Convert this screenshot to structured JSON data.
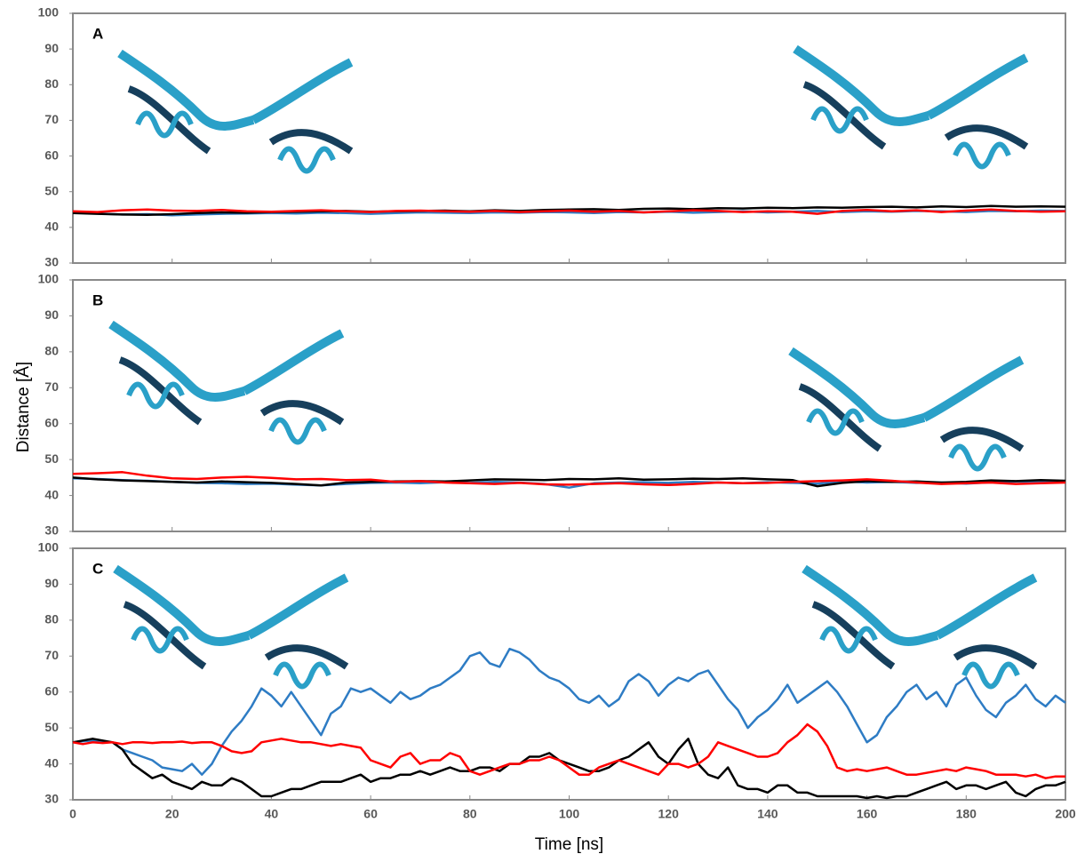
{
  "chart_data": [
    {
      "type": "line",
      "label": "A",
      "xlim": [
        0,
        200
      ],
      "ylim": [
        30,
        100
      ],
      "xticks": [
        0,
        20,
        40,
        60,
        80,
        100,
        120,
        140,
        160,
        180,
        200
      ],
      "yticks": [
        30,
        40,
        50,
        60,
        70,
        80,
        90,
        100
      ],
      "show_xtick_labels": false,
      "x": [
        0,
        5,
        10,
        15,
        20,
        25,
        30,
        35,
        40,
        45,
        50,
        55,
        60,
        65,
        70,
        75,
        80,
        85,
        90,
        95,
        100,
        105,
        110,
        115,
        120,
        125,
        130,
        135,
        140,
        145,
        150,
        155,
        160,
        165,
        170,
        175,
        180,
        185,
        190,
        195,
        200
      ],
      "series": [
        {
          "color": "#2e7cc4",
          "values": [
            44.2,
            43.9,
            43.6,
            43.7,
            43.4,
            43.6,
            43.8,
            43.9,
            44,
            43.9,
            44.1,
            44,
            43.8,
            44,
            44.2,
            44.1,
            44,
            44.2,
            44.1,
            44.3,
            44.2,
            44,
            44.3,
            44.2,
            44.4,
            44.1,
            44.3,
            44.5,
            44.2,
            44.4,
            44.6,
            44.3,
            44.5,
            44.4,
            44.6,
            44.5,
            44.3,
            44.6,
            44.5,
            44.7,
            44.6
          ]
        },
        {
          "color": "#000000",
          "values": [
            44,
            43.8,
            43.6,
            43.5,
            43.7,
            44,
            44.2,
            44.1,
            44.3,
            44.4,
            44.5,
            44.6,
            44.4,
            44.5,
            44.6,
            44.7,
            44.5,
            44.8,
            44.6,
            44.9,
            45,
            45.1,
            44.9,
            45.2,
            45.3,
            45.1,
            45.4,
            45.3,
            45.5,
            45.4,
            45.6,
            45.5,
            45.7,
            45.8,
            45.6,
            45.9,
            45.7,
            46,
            45.8,
            45.9,
            45.8
          ]
        },
        {
          "color": "#ff0000",
          "values": [
            44.5,
            44.3,
            44.8,
            45,
            44.7,
            44.6,
            44.9,
            44.5,
            44.4,
            44.6,
            44.8,
            44.5,
            44.3,
            44.6,
            44.7,
            44.5,
            44.4,
            44.6,
            44.3,
            44.5,
            44.7,
            44.4,
            44.6,
            44.2,
            44.5,
            44.8,
            44.6,
            44.3,
            44.5,
            44.4,
            43.8,
            44.6,
            44.9,
            44.5,
            44.8,
            44.3,
            44.7,
            45,
            44.6,
            44.4,
            44.5
          ]
        }
      ]
    },
    {
      "type": "line",
      "label": "B",
      "ylabel": "Distance [Å]",
      "xlim": [
        0,
        200
      ],
      "ylim": [
        30,
        100
      ],
      "xticks": [
        0,
        20,
        40,
        60,
        80,
        100,
        120,
        140,
        160,
        180,
        200
      ],
      "yticks": [
        30,
        40,
        50,
        60,
        70,
        80,
        90,
        100
      ],
      "show_xtick_labels": false,
      "x": [
        0,
        5,
        10,
        15,
        20,
        25,
        30,
        35,
        40,
        45,
        50,
        55,
        60,
        65,
        70,
        75,
        80,
        85,
        90,
        95,
        100,
        105,
        110,
        115,
        120,
        125,
        130,
        135,
        140,
        145,
        150,
        155,
        160,
        165,
        170,
        175,
        180,
        185,
        190,
        195,
        200
      ],
      "series": [
        {
          "color": "#2e7cc4",
          "values": [
            44.8,
            44.6,
            44.3,
            44.1,
            43.8,
            43.5,
            43.4,
            43.2,
            43.3,
            43,
            42.8,
            43.2,
            43.5,
            43.6,
            43.4,
            43.7,
            43.5,
            43.8,
            43.6,
            43.2,
            42.2,
            43.4,
            43.6,
            43.7,
            43.5,
            43.8,
            43.6,
            43.4,
            43.7,
            43.5,
            43.3,
            43.9,
            43.6,
            43.8,
            43.5,
            43.6,
            43.3,
            43.7,
            43.9,
            43.8,
            43.9
          ]
        },
        {
          "color": "#000000",
          "values": [
            45,
            44.5,
            44.2,
            44,
            43.8,
            43.6,
            43.9,
            43.7,
            43.5,
            43.2,
            42.8,
            43.6,
            43.8,
            43.9,
            44,
            43.9,
            44.2,
            44.5,
            44.4,
            44.3,
            44.6,
            44.5,
            44.8,
            44.4,
            44.5,
            44.7,
            44.6,
            44.8,
            44.5,
            44.3,
            42.6,
            43.5,
            44,
            43.8,
            43.9,
            43.6,
            43.8,
            44.2,
            44,
            44.3,
            44.1
          ]
        },
        {
          "color": "#ff0000",
          "values": [
            46,
            46.2,
            46.5,
            45.5,
            44.8,
            44.6,
            45,
            45.2,
            44.9,
            44.5,
            44.6,
            44.3,
            44.4,
            43.8,
            44,
            43.6,
            43.4,
            43.2,
            43.5,
            43.1,
            43,
            43.2,
            43.4,
            43.1,
            42.9,
            43.2,
            43.6,
            43.4,
            43.5,
            43.8,
            44,
            44.2,
            44.5,
            44.1,
            43.6,
            43.2,
            43.4,
            43.6,
            43.2,
            43.4,
            43.6
          ]
        }
      ]
    },
    {
      "type": "line",
      "label": "C",
      "xlabel": "Time [ns]",
      "xlim": [
        0,
        200
      ],
      "ylim": [
        30,
        100
      ],
      "xticks": [
        0,
        20,
        40,
        60,
        80,
        100,
        120,
        140,
        160,
        180,
        200
      ],
      "yticks": [
        30,
        40,
        50,
        60,
        70,
        80,
        90,
        100
      ],
      "show_xtick_labels": true,
      "x": [
        0,
        2,
        4,
        6,
        8,
        10,
        12,
        14,
        16,
        18,
        20,
        22,
        24,
        26,
        28,
        30,
        32,
        34,
        36,
        38,
        40,
        42,
        44,
        46,
        48,
        50,
        52,
        54,
        56,
        58,
        60,
        62,
        64,
        66,
        68,
        70,
        72,
        74,
        76,
        78,
        80,
        82,
        84,
        86,
        88,
        90,
        92,
        94,
        96,
        98,
        100,
        102,
        104,
        106,
        108,
        110,
        112,
        114,
        116,
        118,
        120,
        122,
        124,
        126,
        128,
        130,
        132,
        134,
        136,
        138,
        140,
        142,
        144,
        146,
        148,
        150,
        152,
        154,
        156,
        158,
        160,
        162,
        164,
        166,
        168,
        170,
        172,
        174,
        176,
        178,
        180,
        182,
        184,
        186,
        188,
        190,
        192,
        194,
        196,
        198,
        200
      ],
      "series": [
        {
          "color": "#2e7cc4",
          "values": [
            46,
            46.3,
            46.5,
            46.2,
            46,
            44,
            43,
            42,
            41,
            39,
            38.5,
            38,
            40,
            37,
            40,
            45,
            49,
            52,
            56,
            61,
            59,
            56,
            60,
            56,
            52,
            48,
            54,
            56,
            61,
            60,
            61,
            59,
            57,
            60,
            58,
            59,
            61,
            62,
            64,
            66,
            70,
            71,
            68,
            67,
            72,
            71,
            69,
            66,
            64,
            63,
            61,
            58,
            57,
            59,
            56,
            58,
            63,
            65,
            63,
            59,
            62,
            64,
            63,
            65,
            66,
            62,
            58,
            55,
            50,
            53,
            55,
            58,
            62,
            57,
            59,
            61,
            63,
            60,
            56,
            51,
            46,
            48,
            53,
            56,
            60,
            62,
            58,
            60,
            56,
            62,
            64,
            59,
            55,
            53,
            57,
            59,
            62,
            58,
            56,
            59,
            57
          ]
        },
        {
          "color": "#000000",
          "values": [
            46,
            46.5,
            47,
            46.5,
            46,
            44,
            40,
            38,
            36,
            37,
            35,
            34,
            33,
            35,
            34,
            34,
            36,
            35,
            33,
            31,
            31,
            32,
            33,
            33,
            34,
            35,
            35,
            35,
            36,
            37,
            35,
            36,
            36,
            37,
            37,
            38,
            37,
            38,
            39,
            38,
            38,
            39,
            39,
            38,
            40,
            40,
            42,
            42,
            43,
            41,
            40,
            39,
            38,
            38,
            39,
            41,
            42,
            44,
            46,
            42,
            40,
            44,
            47,
            40,
            37,
            36,
            39,
            34,
            33,
            33,
            32,
            34,
            34,
            32,
            32,
            31,
            31,
            31,
            31,
            31,
            30.5,
            31,
            30.5,
            31,
            31,
            32,
            33,
            34,
            35,
            33,
            34,
            34,
            33,
            34,
            35,
            32,
            31,
            33,
            34,
            34,
            35
          ]
        },
        {
          "color": "#ff0000",
          "values": [
            46,
            45.5,
            46,
            45.8,
            46,
            45.5,
            46,
            46,
            45.8,
            46,
            46,
            46.2,
            45.8,
            46,
            46,
            45,
            43.5,
            43,
            43.5,
            46,
            46.5,
            47,
            46.5,
            46,
            46,
            45.5,
            45,
            45.5,
            45,
            44.5,
            41,
            40,
            39,
            42,
            43,
            40,
            41,
            41,
            43,
            42,
            38,
            37,
            38,
            39,
            40,
            40,
            41,
            41,
            42,
            41,
            39,
            37,
            37,
            39,
            40,
            41,
            40,
            39,
            38,
            37,
            40,
            40,
            39,
            40,
            42,
            46,
            45,
            44,
            43,
            42,
            42,
            43,
            46,
            48,
            51,
            49,
            45,
            39,
            38,
            38.5,
            38,
            38.5,
            39,
            38,
            37,
            37,
            37.5,
            38,
            38.5,
            38,
            39,
            38.5,
            38,
            37,
            37,
            37,
            36.5,
            37,
            36,
            36.5,
            36.5
          ]
        }
      ]
    }
  ]
}
